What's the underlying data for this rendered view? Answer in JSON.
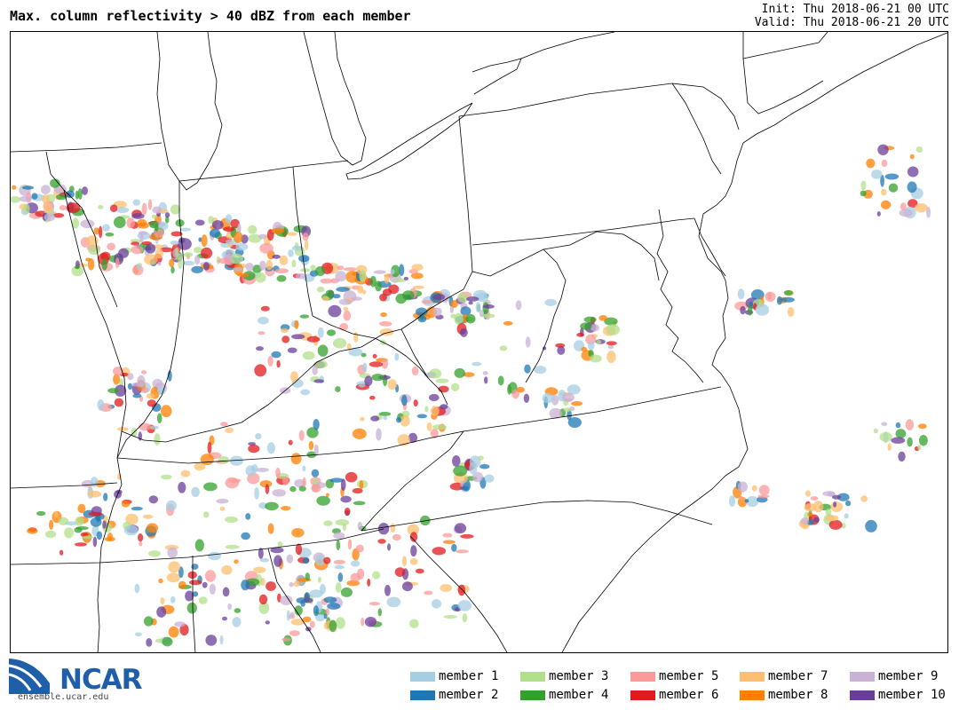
{
  "header": {
    "title": "Max. column reflectivity > 40 dBZ from each member",
    "init": "Init: Thu 2018-06-21 00 UTC",
    "valid": "Valid: Thu 2018-06-21 20 UTC"
  },
  "logo": {
    "name": "NCAR",
    "url": "ensemble.ucar.edu"
  },
  "legend": [
    {
      "label": "member 1",
      "color": "#a6cee3"
    },
    {
      "label": "member 2",
      "color": "#1f78b4"
    },
    {
      "label": "member 3",
      "color": "#b2df8a"
    },
    {
      "label": "member 4",
      "color": "#33a02c"
    },
    {
      "label": "member 5",
      "color": "#fb9a99"
    },
    {
      "label": "member 6",
      "color": "#e31a1c"
    },
    {
      "label": "member 7",
      "color": "#fdbf6f"
    },
    {
      "label": "member 8",
      "color": "#ff7f00"
    },
    {
      "label": "member 9",
      "color": "#cab2d6"
    },
    {
      "label": "member 10",
      "color": "#6a3d9a"
    }
  ]
}
